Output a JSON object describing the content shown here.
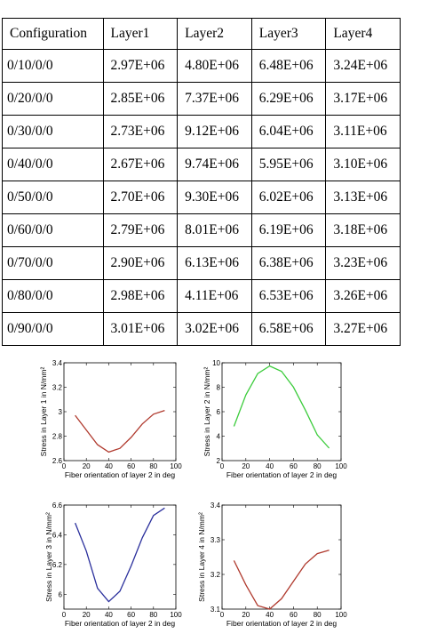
{
  "table": {
    "headers": [
      "Configuration",
      "Layer1",
      "Layer2",
      "Layer3",
      "Layer4"
    ],
    "rows": [
      [
        "0/10/0/0",
        "2.97E+06",
        "4.80E+06",
        "6.48E+06",
        "3.24E+06"
      ],
      [
        "0/20/0/0",
        "2.85E+06",
        "7.37E+06",
        "6.29E+06",
        "3.17E+06"
      ],
      [
        "0/30/0/0",
        "2.73E+06",
        "9.12E+06",
        "6.04E+06",
        "3.11E+06"
      ],
      [
        "0/40/0/0",
        "2.67E+06",
        "9.74E+06",
        "5.95E+06",
        "3.10E+06"
      ],
      [
        "0/50/0/0",
        "2.70E+06",
        "9.30E+06",
        "6.02E+06",
        "3.13E+06"
      ],
      [
        "0/60/0/0",
        "2.79E+06",
        "8.01E+06",
        "6.19E+06",
        "3.18E+06"
      ],
      [
        "0/70/0/0",
        "2.90E+06",
        "6.13E+06",
        "6.38E+06",
        "3.23E+06"
      ],
      [
        "0/80/0/0",
        "2.98E+06",
        "4.11E+06",
        "6.53E+06",
        "3.26E+06"
      ],
      [
        "0/90/0/0",
        "3.01E+06",
        "3.02E+06",
        "6.58E+06",
        "3.27E+06"
      ]
    ]
  },
  "chart_data": [
    {
      "type": "line",
      "xlabel": "Fiber orientation of layer 2 in deg",
      "ylabel": "Stress in Layer 1 in N/mm²",
      "x": [
        10,
        20,
        30,
        40,
        50,
        60,
        70,
        80,
        90
      ],
      "series": [
        {
          "values": [
            2.97,
            2.85,
            2.73,
            2.67,
            2.7,
            2.79,
            2.9,
            2.98,
            3.01
          ],
          "color": "#b03a2e"
        }
      ],
      "xlim": [
        0,
        100
      ],
      "ylim": [
        2.6,
        3.4
      ],
      "xticks": [
        "0",
        "20",
        "40",
        "60",
        "80",
        "100"
      ],
      "yticks": [
        "2.6",
        "2.8",
        "3",
        "3.2",
        "3.4"
      ]
    },
    {
      "type": "line",
      "xlabel": "Fiber orientation of layer 2 in deg",
      "ylabel": "Stress in Layer 2 in N/mm²",
      "x": [
        10,
        20,
        30,
        40,
        50,
        60,
        70,
        80,
        90
      ],
      "series": [
        {
          "values": [
            4.8,
            7.37,
            9.12,
            9.74,
            9.3,
            8.01,
            6.13,
            4.11,
            3.02
          ],
          "color": "#3ccc3c"
        }
      ],
      "xlim": [
        0,
        100
      ],
      "ylim": [
        2,
        10
      ],
      "xticks": [
        "0",
        "20",
        "40",
        "60",
        "80",
        "100"
      ],
      "yticks": [
        "2",
        "4",
        "6",
        "8",
        "10"
      ]
    },
    {
      "type": "line",
      "xlabel": "Fiber orientation of layer 2 in deg",
      "ylabel": "Stress in Layer 3 in N/mm²",
      "x": [
        10,
        20,
        30,
        40,
        50,
        60,
        70,
        80,
        90
      ],
      "series": [
        {
          "values": [
            6.48,
            6.29,
            6.04,
            5.95,
            6.02,
            6.19,
            6.38,
            6.53,
            6.58
          ],
          "color": "#2a2f9c"
        }
      ],
      "xlim": [
        0,
        100
      ],
      "ylim": [
        5.9,
        6.6
      ],
      "xticks": [
        "0",
        "20",
        "40",
        "60",
        "80",
        "100"
      ],
      "yticks": [
        "6",
        "6.2",
        "6.4",
        "6.6"
      ]
    },
    {
      "type": "line",
      "xlabel": "Fiber orientation of layer 2 in deg",
      "ylabel": "Stress in Layer 4 in N/mm²",
      "x": [
        10,
        20,
        30,
        40,
        50,
        60,
        70,
        80,
        90
      ],
      "series": [
        {
          "values": [
            3.24,
            3.17,
            3.11,
            3.1,
            3.13,
            3.18,
            3.23,
            3.26,
            3.27
          ],
          "color": "#b03a2e"
        }
      ],
      "xlim": [
        0,
        100
      ],
      "ylim": [
        3.1,
        3.4
      ],
      "xticks": [
        "0",
        "20",
        "40",
        "60",
        "80",
        "100"
      ],
      "yticks": [
        "3.1",
        "3.2",
        "3.3",
        "3.4"
      ]
    }
  ]
}
